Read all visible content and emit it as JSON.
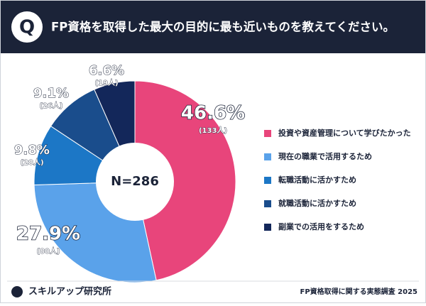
{
  "chart_data": {
    "type": "donut",
    "q_icon": "Q",
    "title": "FP資格を取得した最大の目的に最も近いものを教えてください。",
    "center_label": "N=286",
    "categories": [
      "投資や資産管理について学びたかった",
      "現在の職業で活用するため",
      "転職活動に活かすため",
      "就職活動に活かすため",
      "副業での活用をするため"
    ],
    "values": [
      46.6,
      27.9,
      9.8,
      9.1,
      6.6
    ],
    "value_labels": [
      "46.6%",
      "27.9%",
      "9.8%",
      "9.1%",
      "6.6%"
    ],
    "count_labels": [
      "(133人)",
      "(80人)",
      "(28人)",
      "(26人)",
      "(19人)"
    ],
    "colors": [
      "#e8457b",
      "#5aa2ea",
      "#1c77c6",
      "#1a4d8c",
      "#13275a"
    ],
    "brand": "スキルアップ研究所",
    "source": "FP資格取得に関する実態調査 2025"
  }
}
